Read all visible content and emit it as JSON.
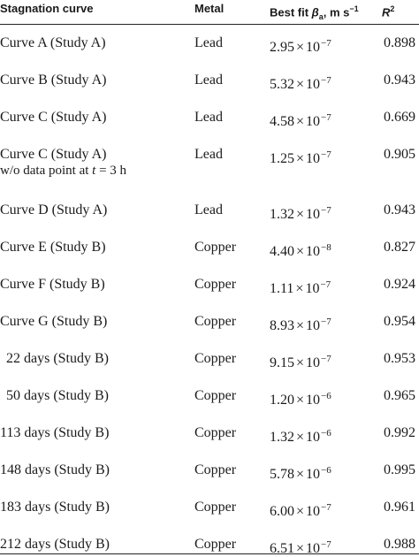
{
  "header": {
    "curve": "Stagnation curve",
    "metal": "Metal",
    "beta_prefix": "Best fit ",
    "beta_symbol": "β",
    "beta_sub": "a",
    "beta_unit": ", m s",
    "beta_unit_exp": "−1",
    "r2_symbol": "R",
    "r2_exp": "2"
  },
  "rows": [
    {
      "curve": "Curve A (Study A)",
      "metal": "Lead",
      "mantissa": "2.95",
      "exponent": "−7",
      "r2": "0.898"
    },
    {
      "curve": "Curve B (Study A)",
      "metal": "Lead",
      "mantissa": "5.32",
      "exponent": "−7",
      "r2": "0.943"
    },
    {
      "curve": "Curve C (Study A)",
      "metal": "Lead",
      "mantissa": "4.58",
      "exponent": "−7",
      "r2": "0.669"
    },
    {
      "curve": "Curve C (Study A)",
      "curve_line2_pre": "w/o data point at ",
      "curve_line2_var": "t",
      "curve_line2_post": " = 3 h",
      "metal": "Lead",
      "mantissa": "1.25",
      "exponent": "−7",
      "r2": "0.905"
    },
    {
      "curve": "Curve D (Study A)",
      "metal": "Lead",
      "mantissa": "1.32",
      "exponent": "−7",
      "r2": "0.943"
    },
    {
      "curve": "Curve E (Study B)",
      "metal": "Copper",
      "mantissa": "4.40",
      "exponent": "−8",
      "r2": "0.827"
    },
    {
      "curve": "Curve F (Study B)",
      "metal": "Copper",
      "mantissa": "1.11",
      "exponent": "−7",
      "r2": "0.924"
    },
    {
      "curve": "Curve G (Study B)",
      "metal": "Copper",
      "mantissa": "8.93",
      "exponent": "−7",
      "r2": "0.954"
    },
    {
      "curve": "22 days (Study B)",
      "metal": "Copper",
      "mantissa": "9.15",
      "exponent": "−7",
      "r2": "0.953"
    },
    {
      "curve": "50 days (Study B)",
      "metal": "Copper",
      "mantissa": "1.20",
      "exponent": "−6",
      "r2": "0.965"
    },
    {
      "curve": "113 days (Study B)",
      "metal": "Copper",
      "mantissa": "1.32",
      "exponent": "−6",
      "r2": "0.992"
    },
    {
      "curve": "148 days (Study B)",
      "metal": "Copper",
      "mantissa": "5.78",
      "exponent": "−6",
      "r2": "0.995"
    },
    {
      "curve": "183 days (Study B)",
      "metal": "Copper",
      "mantissa": "6.00",
      "exponent": "−7",
      "r2": "0.961"
    },
    {
      "curve": "212 days (Study B)",
      "metal": "Copper",
      "mantissa": "6.51",
      "exponent": "−7",
      "r2": "0.988"
    }
  ],
  "times_symbol": "×",
  "base": "10"
}
